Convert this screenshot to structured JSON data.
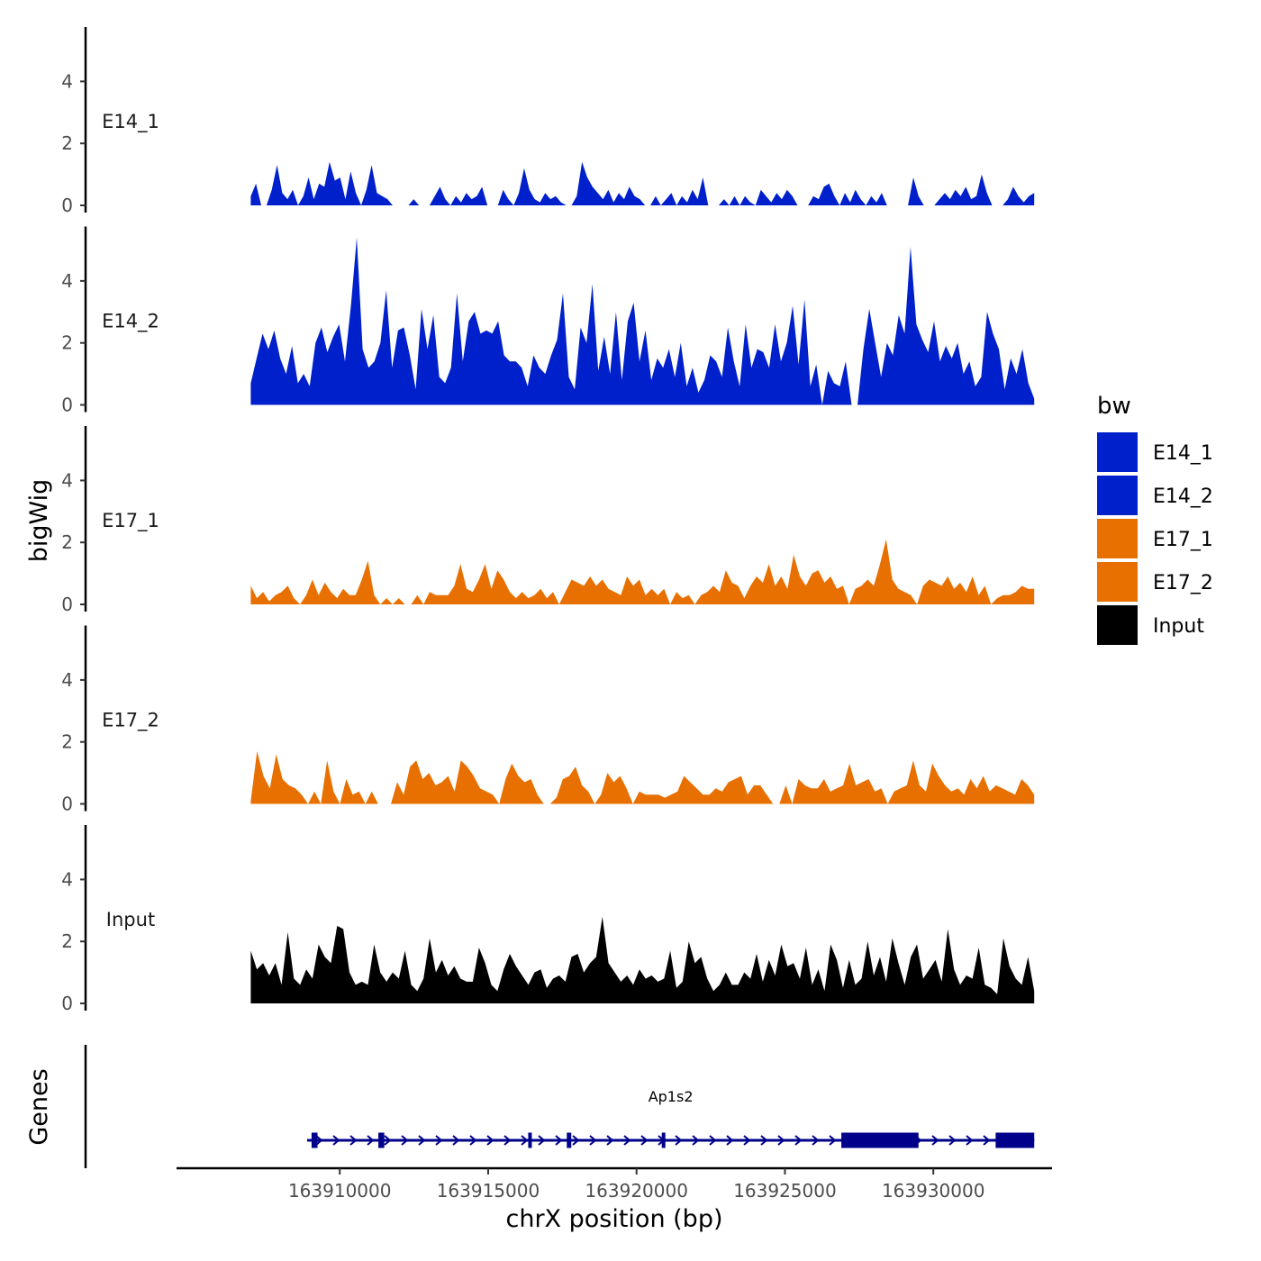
{
  "chart_data": {
    "type": "area",
    "title": "",
    "xlabel": "chrX position (bp)",
    "ylabel": "bigWig",
    "genes_label": "Genes",
    "xlim": [
      163904500,
      163934000
    ],
    "x_ticks": [
      163910000,
      163915000,
      163920000,
      163925000,
      163930000
    ],
    "x_tick_labels": [
      "163910000",
      "163915000",
      "163920000",
      "163925000",
      "163930000"
    ],
    "ylim": [
      0,
      5.6
    ],
    "y_ticks": [
      0,
      2,
      4
    ],
    "y_tick_labels": [
      "0",
      "2",
      "4"
    ],
    "data_range": [
      163907000,
      163933400
    ],
    "legend": {
      "title": "bw",
      "position": "right",
      "entries": [
        {
          "name": "E14_1",
          "color": "#0020CC"
        },
        {
          "name": "E14_2",
          "color": "#0020CC"
        },
        {
          "name": "E17_1",
          "color": "#E87000"
        },
        {
          "name": "E17_2",
          "color": "#E87000"
        },
        {
          "name": "Input",
          "color": "#000000"
        }
      ]
    },
    "series": [
      {
        "name": "E14_1",
        "color": "#0020CC",
        "values": [
          0.3,
          0.7,
          0,
          0,
          0.5,
          1.3,
          0.4,
          0.2,
          0.5,
          0,
          0.3,
          0.9,
          0.2,
          0.7,
          0.6,
          1.4,
          0.8,
          0.9,
          0.2,
          1.1,
          0.4,
          0,
          0.5,
          1.3,
          0.4,
          0.3,
          0.2,
          0,
          0,
          0,
          0,
          0.2,
          0,
          0,
          0,
          0.3,
          0.6,
          0.2,
          0,
          0.3,
          0.1,
          0.4,
          0.2,
          0.3,
          0.6,
          0,
          0,
          0,
          0.5,
          0.2,
          0,
          0.4,
          1.2,
          0.5,
          0.2,
          0.1,
          0.4,
          0.2,
          0.3,
          0.1,
          0,
          0,
          0.3,
          1.4,
          0.9,
          0.6,
          0.4,
          0.2,
          0.5,
          0.1,
          0.4,
          0.2,
          0.6,
          0.3,
          0.2,
          0,
          0,
          0.3,
          0,
          0.2,
          0.4,
          0,
          0.3,
          0.1,
          0.5,
          0.2,
          0.9,
          0,
          0,
          0,
          0.2,
          0,
          0.3,
          0,
          0.3,
          0.1,
          0,
          0.5,
          0.3,
          0.1,
          0.4,
          0.2,
          0.5,
          0.3,
          0,
          0,
          0,
          0.3,
          0.2,
          0.6,
          0.7,
          0.3,
          0,
          0.4,
          0.1,
          0.5,
          0.2,
          0,
          0.3,
          0.1,
          0.4,
          0,
          0,
          0,
          0,
          0,
          0.9,
          0.3,
          0,
          0,
          0,
          0.2,
          0.4,
          0.2,
          0.5,
          0.3,
          0.6,
          0.2,
          0.3,
          1.0,
          0.4,
          0,
          0,
          0,
          0.2,
          0.6,
          0.3,
          0.1,
          0.3,
          0.4
        ]
      },
      {
        "name": "E14_2",
        "color": "#0020CC",
        "values": [
          0.7,
          1.5,
          2.3,
          1.8,
          2.4,
          1.5,
          1.0,
          1.9,
          0.7,
          1.0,
          0.6,
          2.0,
          2.5,
          1.7,
          2.2,
          2.6,
          1.4,
          3.2,
          5.4,
          1.8,
          1.2,
          1.4,
          2.0,
          3.7,
          1.2,
          2.4,
          2.5,
          1.6,
          0.5,
          3.1,
          1.8,
          2.9,
          0.9,
          0.7,
          1.2,
          3.6,
          1.4,
          2.7,
          3.0,
          2.3,
          2.4,
          2.3,
          2.7,
          1.6,
          1.4,
          1.4,
          1.2,
          0.6,
          1.6,
          1.2,
          1.0,
          1.6,
          2.1,
          3.6,
          0.9,
          0.5,
          2.5,
          2.0,
          3.9,
          1.1,
          2.2,
          1.0,
          3.0,
          0.8,
          2.7,
          3.3,
          1.4,
          2.4,
          0.8,
          1.5,
          1.2,
          1.8,
          0.9,
          2.0,
          0.6,
          1.2,
          0.4,
          0.8,
          1.6,
          1.4,
          0.9,
          2.5,
          1.4,
          0.6,
          2.6,
          1.2,
          1.8,
          1.7,
          1.2,
          2.6,
          1.4,
          2.0,
          3.2,
          1.3,
          3.4,
          0.6,
          1.3,
          0.0,
          1.1,
          0.7,
          0.6,
          1.4,
          0.0,
          0.0,
          1.8,
          3.1,
          2.0,
          0.9,
          2.0,
          1.6,
          2.9,
          2.3,
          5.1,
          2.6,
          2.1,
          1.7,
          2.7,
          1.4,
          1.9,
          1.5,
          2.0,
          1.0,
          1.4,
          0.6,
          0.9,
          3.0,
          2.3,
          1.8,
          0.5,
          1.5,
          1.0,
          1.8,
          0.7,
          0.2
        ]
      },
      {
        "name": "E17_1",
        "color": "#E87000",
        "values": [
          0.6,
          0.2,
          0.4,
          0.1,
          0.3,
          0.4,
          0.6,
          0.2,
          0,
          0.3,
          0.8,
          0.3,
          0.7,
          0.4,
          0.2,
          0.5,
          0.3,
          0.3,
          0.8,
          1.4,
          0.3,
          0,
          0.2,
          0,
          0.2,
          0,
          0,
          0.3,
          0,
          0.4,
          0.3,
          0.3,
          0.3,
          0.6,
          1.3,
          0.5,
          0.4,
          0.8,
          1.3,
          0.5,
          1.1,
          0.8,
          0.4,
          0.2,
          0.4,
          0.2,
          0.3,
          0.5,
          0.2,
          0.4,
          0,
          0.4,
          0.8,
          0.7,
          0.6,
          0.9,
          0.6,
          0.8,
          0.5,
          0.4,
          0.3,
          0.9,
          0.6,
          0.8,
          0.3,
          0.5,
          0.3,
          0.5,
          0,
          0.4,
          0.2,
          0.3,
          0,
          0.3,
          0.4,
          0.6,
          0.4,
          1.1,
          0.7,
          0.6,
          0.2,
          0.6,
          0.9,
          0.7,
          1.3,
          0.6,
          0.9,
          0.5,
          1.6,
          0.9,
          0.6,
          1.0,
          1.1,
          0.7,
          0.9,
          0.5,
          0.6,
          0,
          0.5,
          0.6,
          0.8,
          0.6,
          1.3,
          2.1,
          0.8,
          0.5,
          0.4,
          0.3,
          0,
          0.6,
          0.8,
          0.7,
          0.6,
          0.9,
          0.5,
          0.7,
          0.4,
          0.9,
          0.3,
          0.6,
          0,
          0.2,
          0.3,
          0.3,
          0.4,
          0.6,
          0.5,
          0.5
        ]
      },
      {
        "name": "E17_2",
        "color": "#E87000",
        "values": [
          0.1,
          1.7,
          0.9,
          0.5,
          1.6,
          0.8,
          0.6,
          0.5,
          0.3,
          0,
          0.4,
          0,
          1.4,
          0.4,
          0,
          0.8,
          0.3,
          0.4,
          0,
          0.4,
          0,
          0,
          0,
          0.7,
          0.3,
          1.2,
          1.4,
          0.8,
          1.0,
          0.6,
          0.7,
          0.9,
          0.4,
          1.4,
          1.2,
          0.9,
          0.5,
          0.4,
          0.3,
          0,
          0.8,
          1.3,
          0.9,
          0.7,
          0.8,
          0.3,
          0,
          0,
          0.2,
          0.8,
          0.9,
          1.2,
          0.6,
          0.4,
          0,
          0.3,
          1.0,
          0.7,
          0.9,
          0.5,
          0,
          0.4,
          0.3,
          0.3,
          0.3,
          0.2,
          0.3,
          0.4,
          0.9,
          0.7,
          0.5,
          0.3,
          0.3,
          0.5,
          0.4,
          0.7,
          0.8,
          0.9,
          0.3,
          0.6,
          0.6,
          0.3,
          0,
          0,
          0.6,
          0,
          0.8,
          0.6,
          0.5,
          0.5,
          0.8,
          0.4,
          0.5,
          0.6,
          1.3,
          0.6,
          0.7,
          0.8,
          0.4,
          0.5,
          0,
          0.4,
          0.5,
          0.6,
          1.4,
          0.6,
          0.4,
          1.3,
          0.9,
          0.6,
          0.4,
          0.5,
          0.3,
          0.8,
          0.5,
          0.9,
          0.4,
          0.6,
          0.5,
          0.4,
          0.3,
          0.8,
          0.6,
          0.3
        ]
      },
      {
        "name": "Input",
        "color": "#000000",
        "values": [
          1.7,
          1.1,
          1.3,
          0.9,
          1.3,
          0.6,
          2.3,
          0.8,
          0.6,
          1.1,
          0.8,
          1.9,
          1.5,
          1.3,
          2.5,
          2.4,
          1.0,
          0.6,
          0.7,
          0.6,
          1.9,
          1.0,
          0.7,
          1.0,
          0.8,
          1.7,
          0.6,
          0.4,
          0.8,
          2.1,
          1.0,
          1.4,
          0.9,
          1.2,
          0.8,
          0.7,
          0.7,
          1.8,
          1.3,
          0.6,
          0.4,
          1.1,
          1.6,
          1.2,
          0.9,
          0.6,
          1.0,
          1.1,
          0.5,
          0.8,
          0.9,
          0.7,
          1.5,
          1.6,
          1.0,
          1.3,
          1.5,
          2.8,
          1.3,
          1.0,
          0.7,
          0.9,
          0.6,
          1.1,
          0.8,
          0.9,
          0.7,
          0.8,
          1.7,
          0.5,
          0.7,
          2.0,
          1.3,
          1.5,
          0.8,
          0.4,
          0.6,
          1.0,
          0.6,
          0.6,
          1.0,
          0.8,
          1.6,
          0.7,
          1.4,
          0.9,
          1.9,
          1.2,
          1.3,
          0.8,
          1.8,
          0.6,
          1.1,
          0.4,
          1.9,
          1.4,
          0.5,
          1.4,
          0.6,
          0.8,
          2.0,
          0.9,
          1.5,
          0.7,
          2.1,
          1.3,
          0.6,
          1.5,
          1.9,
          0.8,
          1.1,
          1.4,
          0.7,
          2.4,
          1.1,
          0.6,
          0.9,
          0.8,
          1.8,
          0.6,
          0.5,
          0.3,
          2.1,
          1.2,
          0.8,
          0.6,
          1.5,
          0.4
        ]
      }
    ],
    "genes": [
      {
        "name": "Ap1s2",
        "strand": "+",
        "start": 163908900,
        "end": 163933400,
        "exons": [
          {
            "start": 163909050,
            "end": 163909250
          },
          {
            "start": 163911300,
            "end": 163911500
          },
          {
            "start": 163916350,
            "end": 163916450
          },
          {
            "start": 163917650,
            "end": 163917800
          },
          {
            "start": 163920850,
            "end": 163920950
          },
          {
            "start": 163926900,
            "end": 163929500
          },
          {
            "start": 163932100,
            "end": 163933400
          }
        ]
      }
    ]
  }
}
